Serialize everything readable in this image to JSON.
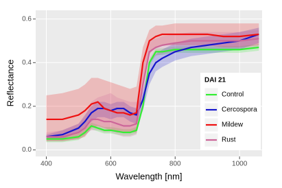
{
  "chart_data": {
    "type": "line",
    "x_label": "Wavelength [nm]",
    "y_label": "Reflectance",
    "legend_title": "DAI 21",
    "legend_position": "bottom-right",
    "grid": true,
    "xlim": [
      367,
      1070
    ],
    "xticks": [
      400,
      600,
      800,
      1000
    ],
    "ylim": [
      -0.03,
      0.64
    ],
    "yticks": [
      {
        "value": 0,
        "label": "0.0"
      },
      0.2,
      0.4,
      0.6
    ],
    "x": [
      400,
      450,
      500,
      520,
      540,
      560,
      580,
      600,
      620,
      640,
      660,
      680,
      700,
      720,
      740,
      760,
      800,
      850,
      900,
      950,
      1000,
      1060
    ],
    "series": [
      {
        "name": "Control",
        "color": "#33ee33",
        "values": [
          0.05,
          0.05,
          0.06,
          0.08,
          0.11,
          0.1,
          0.09,
          0.09,
          0.085,
          0.08,
          0.08,
          0.09,
          0.2,
          0.4,
          0.45,
          0.45,
          0.46,
          0.46,
          0.46,
          0.46,
          0.46,
          0.47
        ],
        "lower": [
          0.035,
          0.035,
          0.045,
          0.065,
          0.095,
          0.085,
          0.075,
          0.075,
          0.07,
          0.065,
          0.065,
          0.075,
          0.185,
          0.385,
          0.435,
          0.435,
          0.445,
          0.445,
          0.445,
          0.445,
          0.445,
          0.455
        ],
        "upper": [
          0.065,
          0.065,
          0.075,
          0.095,
          0.125,
          0.115,
          0.105,
          0.105,
          0.1,
          0.095,
          0.095,
          0.105,
          0.215,
          0.415,
          0.465,
          0.465,
          0.475,
          0.475,
          0.475,
          0.475,
          0.475,
          0.485
        ]
      },
      {
        "name": "Cercospora",
        "color": "#1515cc",
        "values": [
          0.06,
          0.07,
          0.1,
          0.13,
          0.17,
          0.19,
          0.19,
          0.18,
          0.19,
          0.19,
          0.17,
          0.16,
          0.23,
          0.35,
          0.4,
          0.42,
          0.45,
          0.47,
          0.48,
          0.49,
          0.5,
          0.53
        ],
        "lower": [
          0.05,
          0.05,
          0.08,
          0.1,
          0.13,
          0.15,
          0.15,
          0.14,
          0.15,
          0.15,
          0.13,
          0.12,
          0.18,
          0.3,
          0.36,
          0.38,
          0.41,
          0.43,
          0.44,
          0.45,
          0.46,
          0.49
        ],
        "upper": [
          0.07,
          0.09,
          0.12,
          0.16,
          0.2,
          0.22,
          0.22,
          0.21,
          0.22,
          0.22,
          0.2,
          0.19,
          0.27,
          0.4,
          0.44,
          0.46,
          0.49,
          0.51,
          0.52,
          0.53,
          0.54,
          0.56
        ]
      },
      {
        "name": "Mildew",
        "color": "#ee1111",
        "values": [
          0.14,
          0.14,
          0.16,
          0.18,
          0.21,
          0.22,
          0.19,
          0.18,
          0.17,
          0.17,
          0.16,
          0.17,
          0.4,
          0.5,
          0.52,
          0.53,
          0.53,
          0.53,
          0.53,
          0.52,
          0.52,
          0.53
        ],
        "lower": [
          0.04,
          0.04,
          0.05,
          0.06,
          0.1,
          0.11,
          0.1,
          0.09,
          0.08,
          0.08,
          0.08,
          0.08,
          0.31,
          0.44,
          0.47,
          0.48,
          0.48,
          0.48,
          0.48,
          0.47,
          0.47,
          0.48
        ],
        "upper": [
          0.25,
          0.26,
          0.28,
          0.3,
          0.33,
          0.33,
          0.32,
          0.31,
          0.3,
          0.29,
          0.28,
          0.29,
          0.47,
          0.55,
          0.57,
          0.57,
          0.58,
          0.58,
          0.58,
          0.58,
          0.58,
          0.58
        ]
      },
      {
        "name": "Rust",
        "color": "#cc6699",
        "values": [
          0.06,
          0.06,
          0.08,
          0.1,
          0.14,
          0.14,
          0.13,
          0.13,
          0.12,
          0.11,
          0.11,
          0.12,
          0.3,
          0.45,
          0.47,
          0.48,
          0.49,
          0.5,
          0.5,
          0.5,
          0.5,
          0.51
        ],
        "lower": [
          0.04,
          0.04,
          0.05,
          0.07,
          0.09,
          0.09,
          0.08,
          0.08,
          0.07,
          0.06,
          0.06,
          0.07,
          0.22,
          0.4,
          0.43,
          0.44,
          0.45,
          0.46,
          0.46,
          0.46,
          0.46,
          0.47
        ],
        "upper": [
          0.08,
          0.09,
          0.12,
          0.15,
          0.22,
          0.24,
          0.25,
          0.26,
          0.24,
          0.23,
          0.22,
          0.22,
          0.38,
          0.5,
          0.51,
          0.52,
          0.53,
          0.54,
          0.54,
          0.54,
          0.54,
          0.55
        ]
      }
    ]
  }
}
